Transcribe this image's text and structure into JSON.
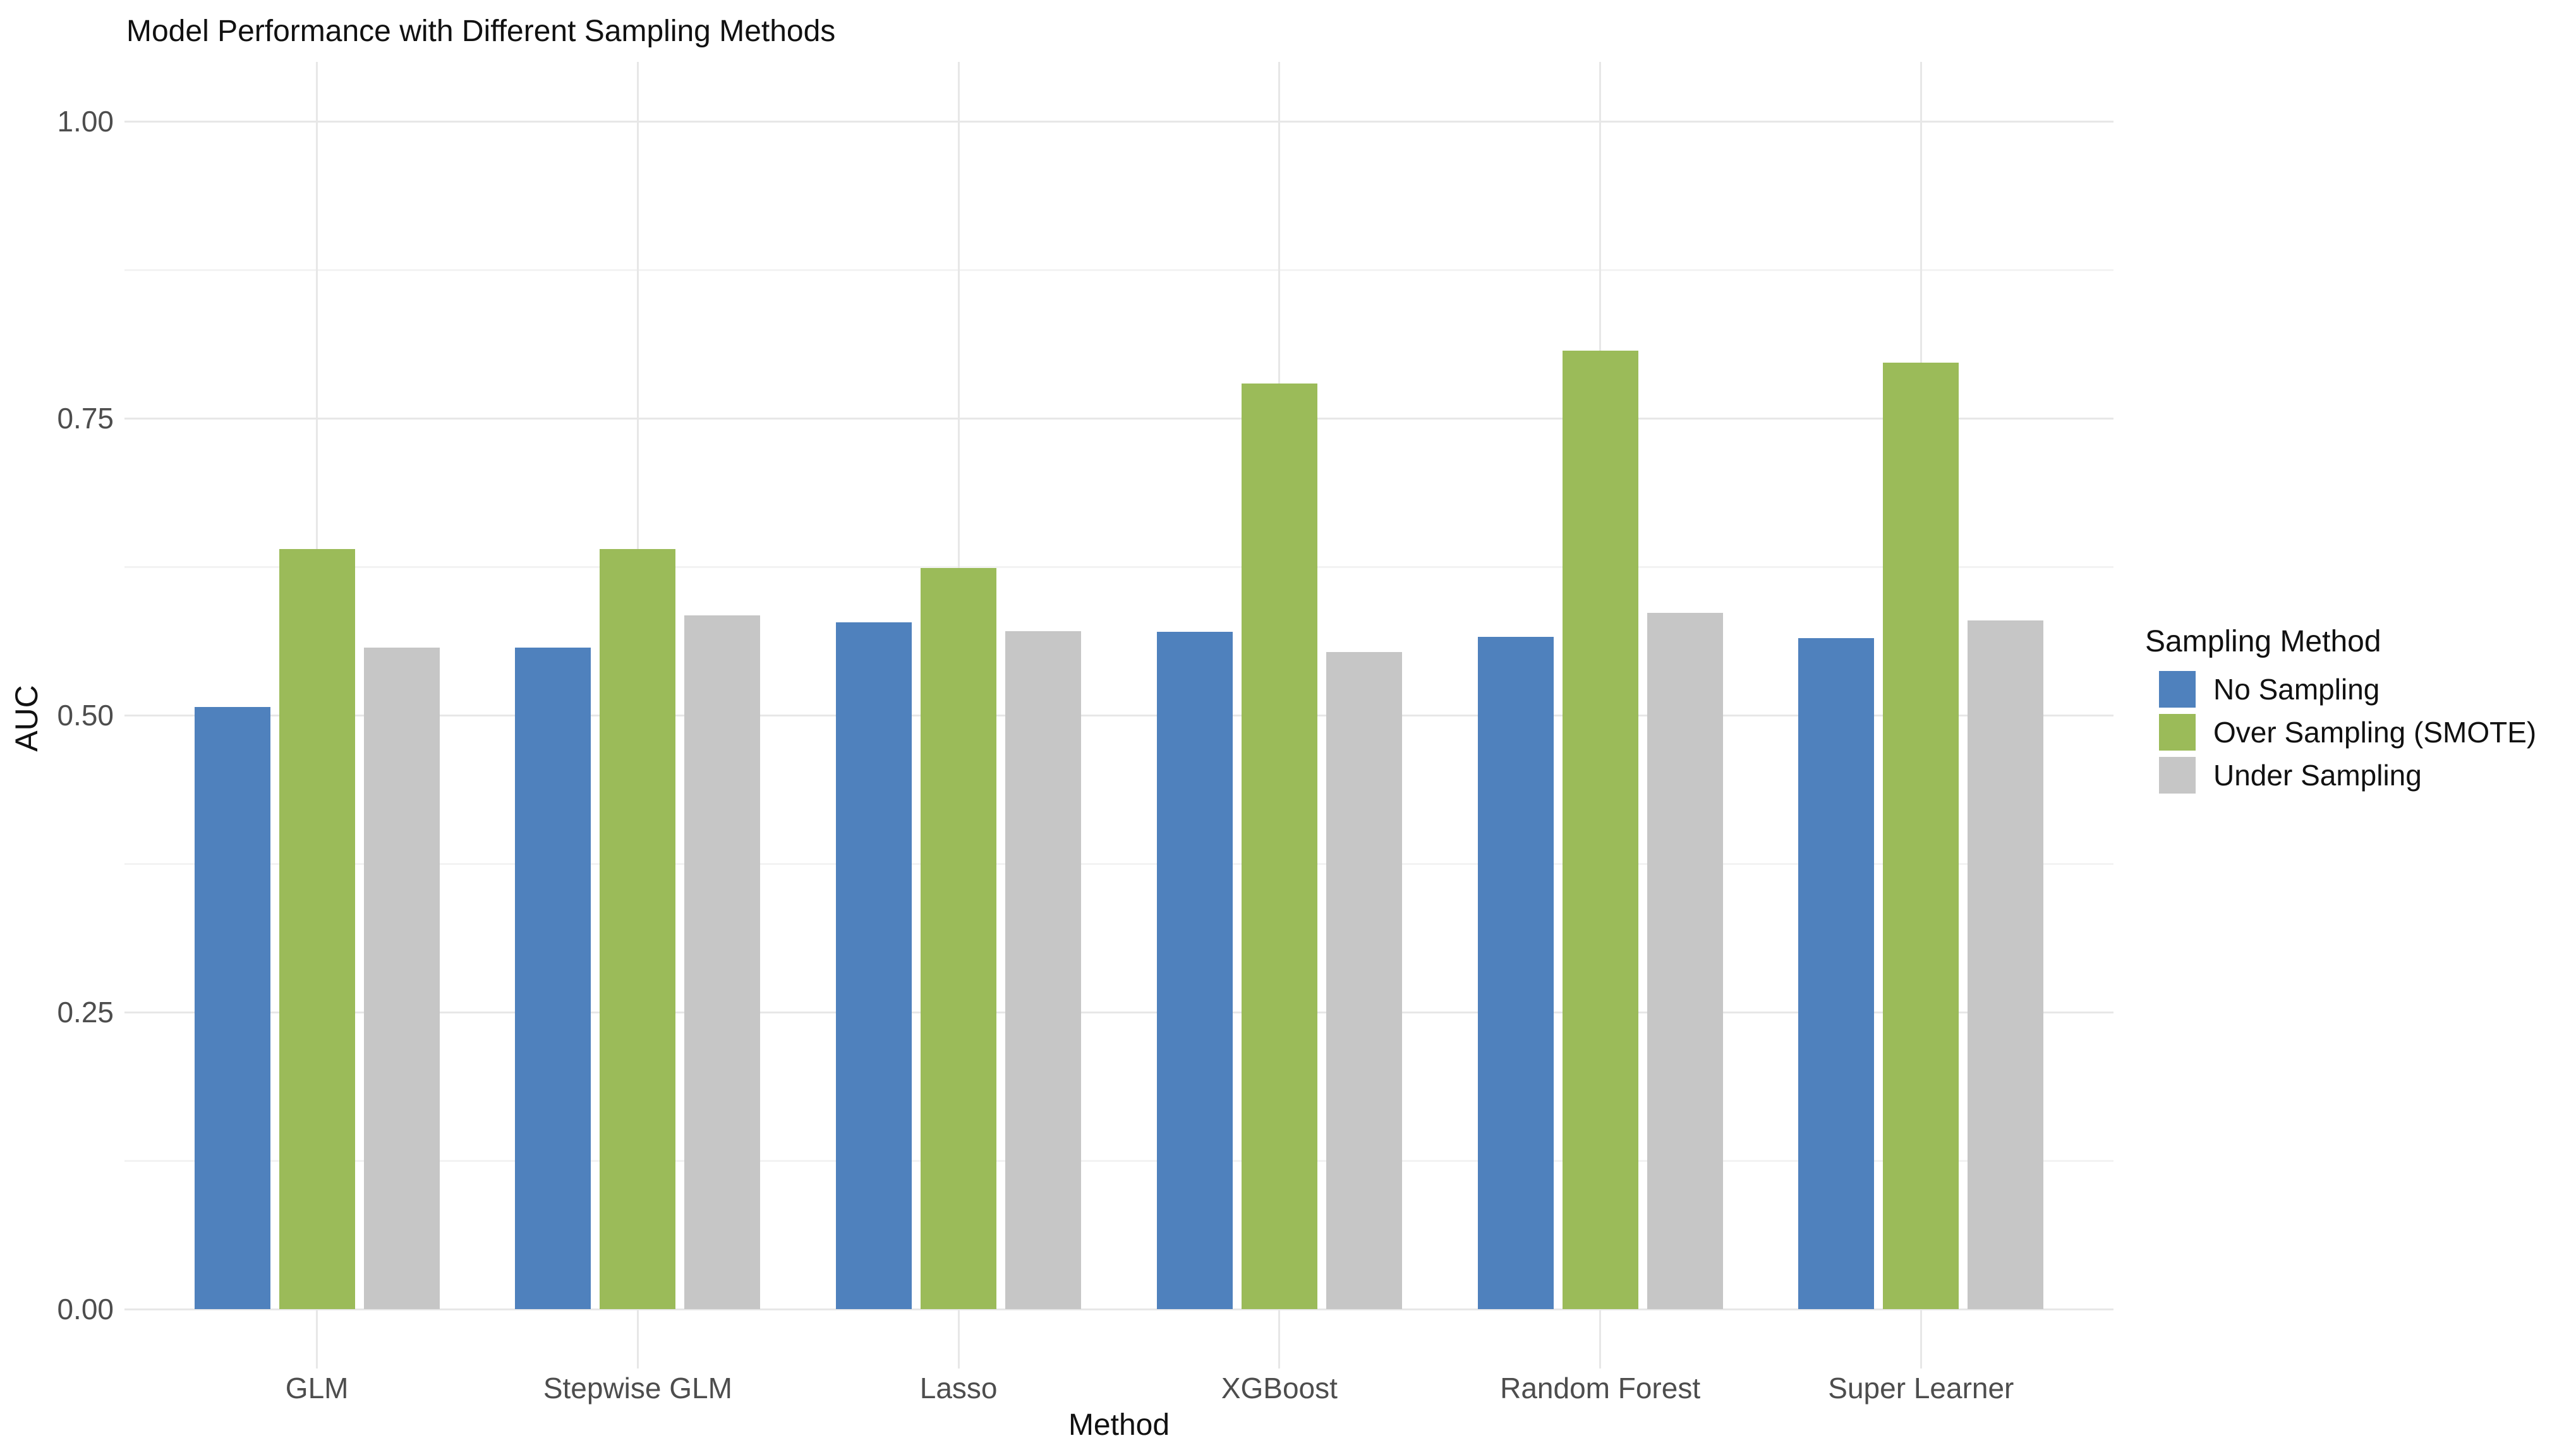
{
  "title": "Model Performance with Different Sampling Methods",
  "chart_data": {
    "type": "bar",
    "title": "Model Performance with Different Sampling Methods",
    "xlabel": "Method",
    "ylabel": "AUC",
    "categories": [
      "GLM",
      "Stepwise GLM",
      "Lasso",
      "XGBoost",
      "Random Forest",
      "Super Learner"
    ],
    "series": [
      {
        "name": "No Sampling",
        "color": "#4F81BD",
        "values": [
          0.507,
          0.557,
          0.578,
          0.57,
          0.566,
          0.565
        ]
      },
      {
        "name": "Over Sampling (SMOTE)",
        "color": "#9BBB59",
        "values": [
          0.64,
          0.64,
          0.624,
          0.779,
          0.807,
          0.797
        ]
      },
      {
        "name": "Under Sampling",
        "color": "#C6C6C6",
        "values": [
          0.557,
          0.584,
          0.571,
          0.553,
          0.586,
          0.58
        ]
      }
    ],
    "y_ticks": [
      0.0,
      0.25,
      0.5,
      0.75,
      1.0
    ],
    "y_tick_labels": [
      "0.00",
      "0.25",
      "0.50",
      "0.75",
      "1.00"
    ],
    "y_minor_ticks": [
      0.125,
      0.375,
      0.625,
      0.875
    ],
    "ylim": [
      0,
      1
    ],
    "grid": true,
    "legend_title": "Sampling Method",
    "legend_position": "right",
    "colors": {
      "background": "#ffffff",
      "major_grid": "#e7e7e7",
      "minor_grid": "#f3f3f3",
      "tick_label": "#4d4d4d",
      "text": "#111111"
    }
  }
}
